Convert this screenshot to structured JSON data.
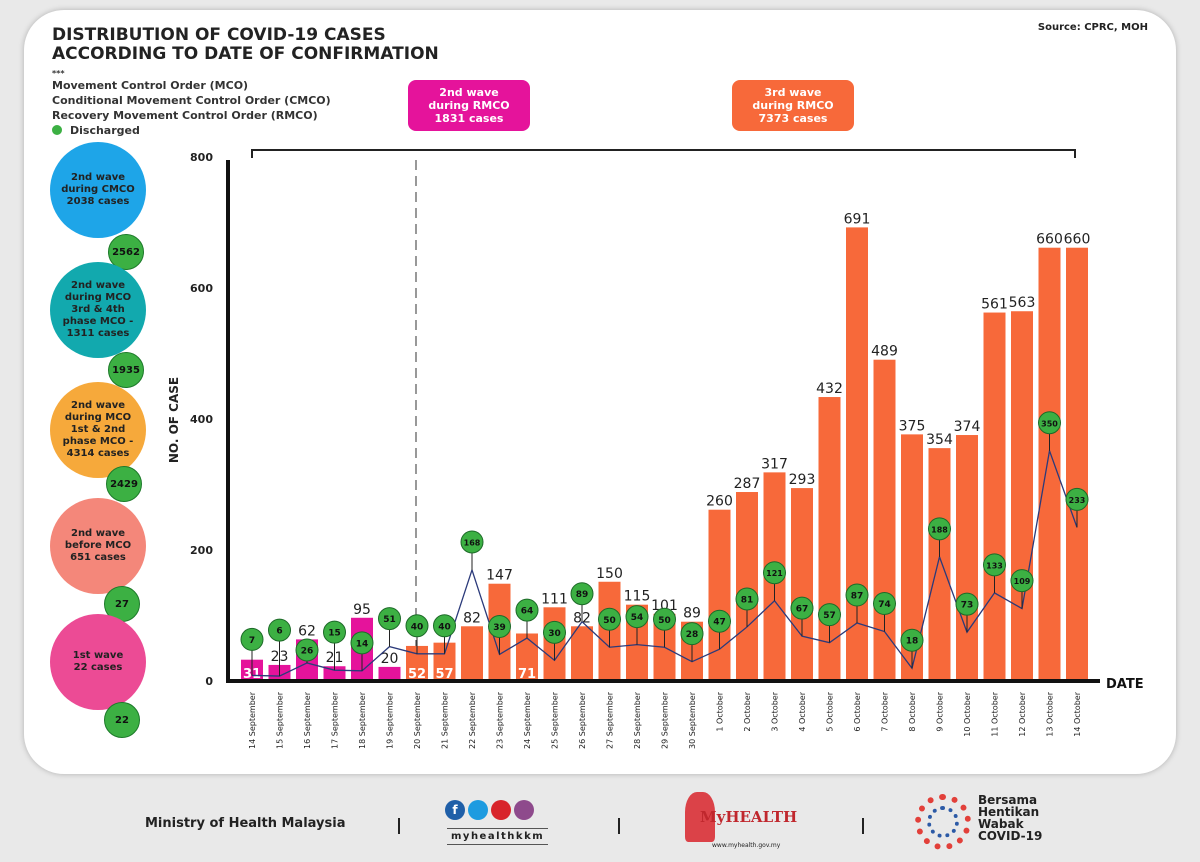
{
  "header": {
    "title_line1": "DISTRIBUTION OF COVID-19 CASES",
    "title_line2": "ACCORDING TO DATE OF CONFIRMATION",
    "source": "Source: CPRC, MOH"
  },
  "legend": {
    "stars": "***",
    "items": [
      "Movement Control Order (MCO)",
      "Conditional Movement Control Order (CMCO)",
      "Recovery Movement Control Order (RMCO)"
    ],
    "discharged": "Discharged"
  },
  "waves": [
    {
      "label": "2nd wave during RMCO 1831 cases",
      "line1": "2nd wave",
      "line2": "during RMCO",
      "line3": "1831 cases",
      "color": "#e5139b"
    },
    {
      "label": "3rd wave during RMCO 7373 cases",
      "line1": "3rd wave",
      "line2": "during RMCO",
      "line3": "7373 cases",
      "color": "#f7693a"
    }
  ],
  "side_bubbles": [
    {
      "lines": [
        "2nd wave",
        "during CMCO",
        "2038 cases"
      ],
      "discharged": "2562",
      "color": "#1ea5e8"
    },
    {
      "lines": [
        "2nd wave",
        "during MCO",
        "3rd & 4th",
        "phase MCO -",
        "1311 cases"
      ],
      "discharged": "1935",
      "color": "#12a9ae"
    },
    {
      "lines": [
        "2nd wave",
        "during MCO",
        "1st & 2nd",
        "phase MCO -",
        "4314 cases"
      ],
      "discharged": "2429",
      "color": "#f6a93b"
    },
    {
      "lines": [
        "2nd wave",
        "before MCO",
        "651 cases"
      ],
      "discharged": "27",
      "color": "#f4877a"
    },
    {
      "lines": [
        "1st wave",
        "22 cases"
      ],
      "discharged": "22",
      "color": "#ec4b95"
    }
  ],
  "chart_data": {
    "type": "bar",
    "ylabel": "NO. OF CASE",
    "xlabel": "DATE",
    "ylim": [
      0,
      800
    ],
    "yticks": [
      0,
      200,
      400,
      600,
      800
    ],
    "categories": [
      "14 September",
      "15 September",
      "16 September",
      "17 September",
      "18 September",
      "19 September",
      "20 September",
      "21 September",
      "22 September",
      "23 September",
      "24 September",
      "25 September",
      "26 September",
      "27 September",
      "28 September",
      "29 September",
      "30 September",
      "1 October",
      "2 October",
      "3 October",
      "4 October",
      "5 October",
      "6 October",
      "7 October",
      "8 October",
      "9 October",
      "10 October",
      "11 October",
      "12 October",
      "13 October",
      "14 October"
    ],
    "series": [
      {
        "name": "Cases",
        "type": "bar",
        "values": [
          31,
          23,
          62,
          21,
          95,
          20,
          52,
          57,
          82,
          147,
          71,
          111,
          82,
          150,
          115,
          101,
          89,
          260,
          287,
          317,
          293,
          432,
          691,
          489,
          375,
          354,
          374,
          561,
          563,
          660,
          660
        ]
      },
      {
        "name": "Discharged",
        "type": "line",
        "values": [
          7,
          6,
          26,
          15,
          14,
          51,
          40,
          40,
          168,
          39,
          64,
          30,
          89,
          50,
          54,
          50,
          28,
          47,
          81,
          121,
          67,
          57,
          87,
          74,
          18,
          188,
          73,
          133,
          109,
          350,
          233
        ]
      }
    ],
    "colors": {
      "cmco_period": "#e5139b",
      "rmco_period": "#f7693a",
      "discharged": "#3cb043",
      "line": "#2b3a7a"
    },
    "divider_after": "19 September"
  },
  "footer": {
    "ministry": "Ministry of Health Malaysia",
    "social_handle": "myhealthkkm",
    "myhealth_logo": "MyHEALTH",
    "myhealth_url": "www.myhealth.gov.my",
    "campaign": [
      "Bersama",
      "Hentikan",
      "Wabak",
      "COVID-19"
    ]
  }
}
